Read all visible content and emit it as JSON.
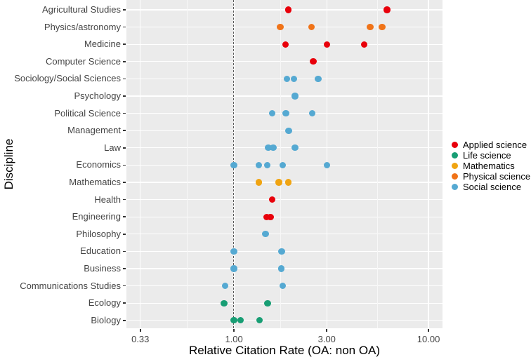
{
  "figure": {
    "x_axis_title": "Relative Citation Rate (OA: non OA)",
    "y_axis_title": "Discipline"
  },
  "legend": {
    "position": "right",
    "items": [
      {
        "label": "Applied science",
        "color": "#E8000B"
      },
      {
        "label": "Life science",
        "color": "#189E74"
      },
      {
        "label": "Mathematics",
        "color": "#F0A412"
      },
      {
        "label": "Physical science",
        "color": "#F07318"
      },
      {
        "label": "Social science",
        "color": "#55A9D2"
      }
    ]
  },
  "chart_data": {
    "type": "scatter",
    "title": "",
    "xlabel": "Relative Citation Rate (OA: non OA)",
    "ylabel": "Discipline",
    "x_scale": "log10",
    "x_range": [
      0.28,
      11.8
    ],
    "x_ticks": [
      {
        "label": "0.33",
        "value": 0.33
      },
      {
        "label": "1.00",
        "value": 1.0
      },
      {
        "label": "3.00",
        "value": 3.0
      },
      {
        "label": "10.00",
        "value": 10.0
      }
    ],
    "x_minor_gridlines": [
      0.574,
      1.732,
      5.477
    ],
    "reference_line_x": 1.0,
    "grid": "on",
    "panel_background": "#EBEBEB",
    "gridline_color": "#FFFFFF",
    "legend_position": "right",
    "categories": [
      "Agricultural Studies",
      "Physics/astronomy",
      "Medicine",
      "Computer Science",
      "Sociology/Social Sciences",
      "Psychology",
      "Political Science",
      "Management",
      "Law",
      "Economics",
      "Mathematics",
      "Health",
      "Engineering",
      "Philosophy",
      "Education",
      "Business",
      "Communications Studies",
      "Ecology",
      "Biology"
    ],
    "series": [
      {
        "name": "Applied science",
        "color": "#E8000B",
        "points": [
          {
            "discipline": "Agricultural Studies",
            "x": 1.9
          },
          {
            "discipline": "Agricultural Studies",
            "x": 6.12
          },
          {
            "discipline": "Medicine",
            "x": 1.84
          },
          {
            "discipline": "Medicine",
            "x": 3.0
          },
          {
            "discipline": "Medicine",
            "x": 4.66
          },
          {
            "discipline": "Computer Science",
            "x": 2.56
          },
          {
            "discipline": "Health",
            "x": 1.57
          },
          {
            "discipline": "Engineering",
            "x": 1.47
          },
          {
            "discipline": "Engineering",
            "x": 1.54
          }
        ]
      },
      {
        "name": "Life science",
        "color": "#189E74",
        "points": [
          {
            "discipline": "Ecology",
            "x": 0.89
          },
          {
            "discipline": "Ecology",
            "x": 1.49
          },
          {
            "discipline": "Biology",
            "x": 1.0
          },
          {
            "discipline": "Biology",
            "x": 1.08
          },
          {
            "discipline": "Biology",
            "x": 1.35
          }
        ]
      },
      {
        "name": "Mathematics",
        "color": "#F0A412",
        "points": [
          {
            "discipline": "Mathematics",
            "x": 1.34
          },
          {
            "discipline": "Mathematics",
            "x": 1.7
          },
          {
            "discipline": "Mathematics",
            "x": 1.9
          }
        ]
      },
      {
        "name": "Physical science",
        "color": "#F07318",
        "points": [
          {
            "discipline": "Physics/astronomy",
            "x": 1.73
          },
          {
            "discipline": "Physics/astronomy",
            "x": 2.5
          },
          {
            "discipline": "Physics/astronomy",
            "x": 5.01
          },
          {
            "discipline": "Physics/astronomy",
            "x": 5.78
          }
        ]
      },
      {
        "name": "Social science",
        "color": "#55A9D2",
        "points": [
          {
            "discipline": "Sociology/Social Sciences",
            "x": 1.87
          },
          {
            "discipline": "Sociology/Social Sciences",
            "x": 2.03
          },
          {
            "discipline": "Sociology/Social Sciences",
            "x": 2.71
          },
          {
            "discipline": "Psychology",
            "x": 2.06
          },
          {
            "discipline": "Political Science",
            "x": 1.57
          },
          {
            "discipline": "Political Science",
            "x": 1.85
          },
          {
            "discipline": "Political Science",
            "x": 2.52
          },
          {
            "discipline": "Management",
            "x": 1.91
          },
          {
            "discipline": "Law",
            "x": 1.5
          },
          {
            "discipline": "Law",
            "x": 1.59
          },
          {
            "discipline": "Law",
            "x": 2.06
          },
          {
            "discipline": "Economics",
            "x": 1.0
          },
          {
            "discipline": "Economics",
            "x": 1.34
          },
          {
            "discipline": "Economics",
            "x": 1.48
          },
          {
            "discipline": "Economics",
            "x": 1.78
          },
          {
            "discipline": "Economics",
            "x": 3.0
          },
          {
            "discipline": "Philosophy",
            "x": 1.45
          },
          {
            "discipline": "Education",
            "x": 1.0
          },
          {
            "discipline": "Education",
            "x": 1.76
          },
          {
            "discipline": "Business",
            "x": 1.0
          },
          {
            "discipline": "Business",
            "x": 1.75
          },
          {
            "discipline": "Communications Studies",
            "x": 0.9
          },
          {
            "discipline": "Communications Studies",
            "x": 1.78
          }
        ]
      }
    ]
  }
}
